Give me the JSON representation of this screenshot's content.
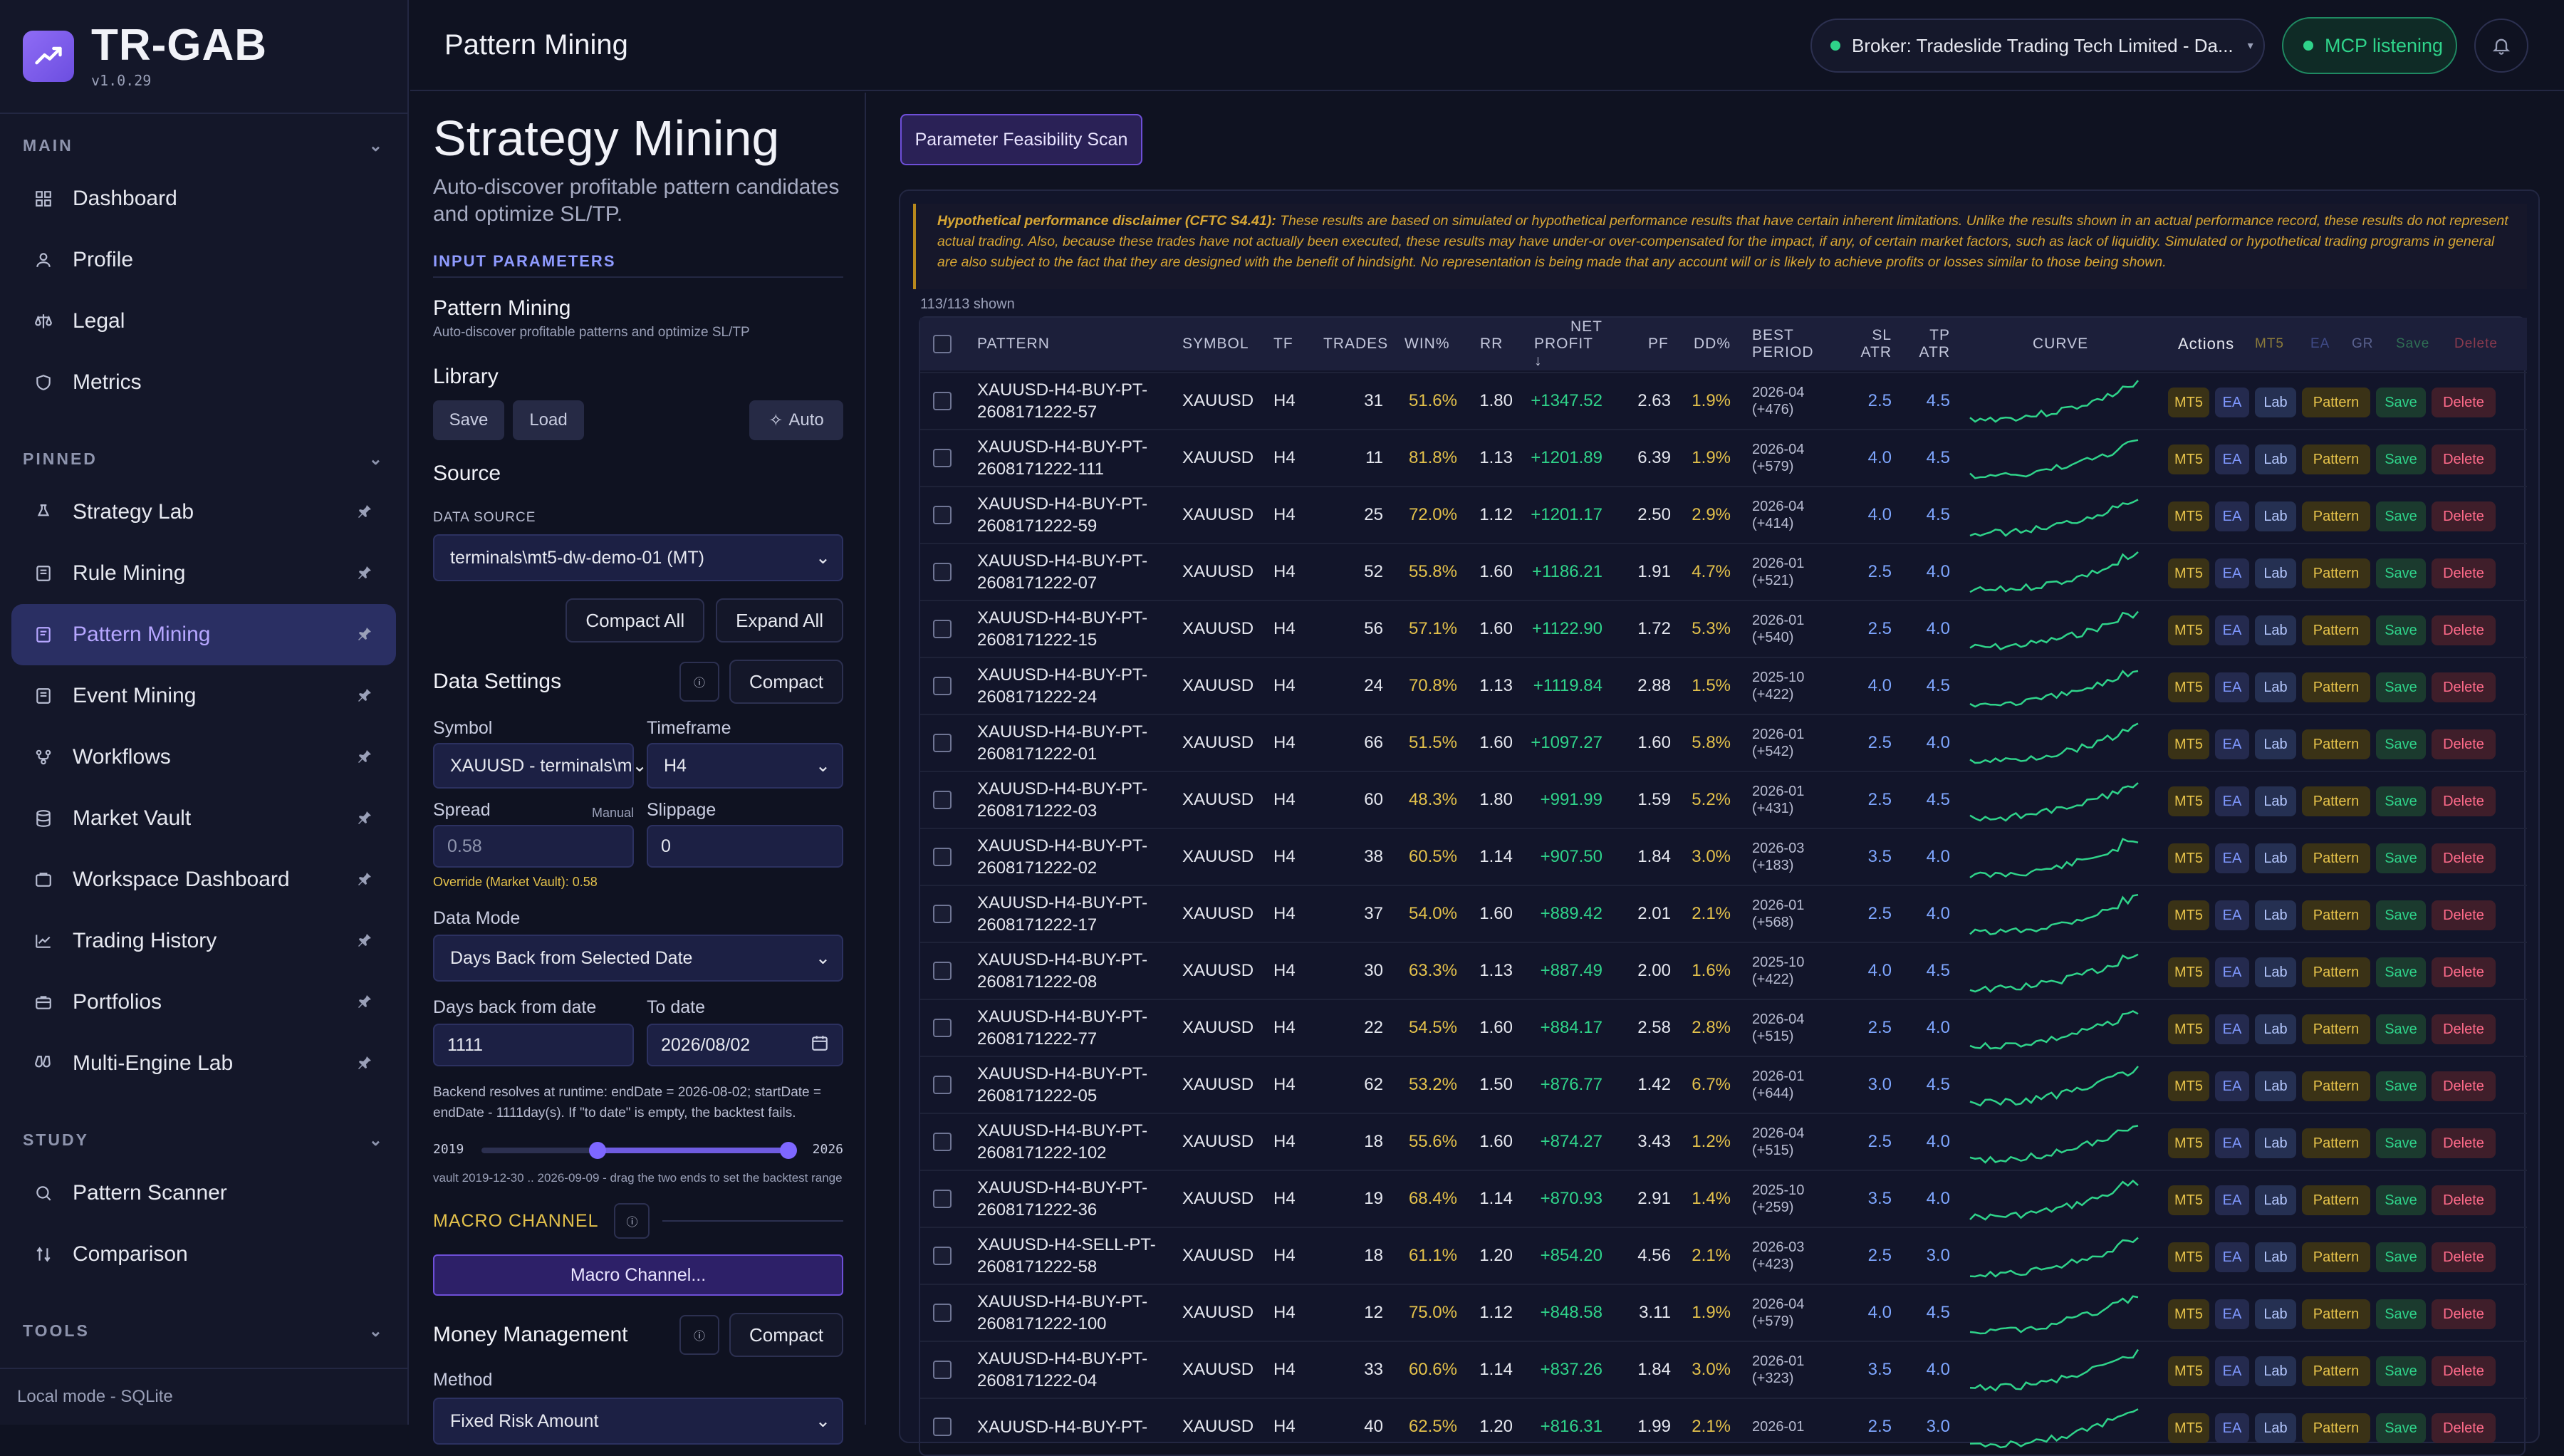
{
  "app": {
    "name": "TR-GAB",
    "version": "v1.0.29"
  },
  "sidebar": {
    "main_label": "MAIN",
    "main_items": [
      "Dashboard",
      "Profile",
      "Legal",
      "Metrics"
    ],
    "pinned_label": "PINNED",
    "pinned_items": [
      "Strategy Lab",
      "Rule Mining",
      "Pattern Mining",
      "Event Mining",
      "Workflows",
      "Market Vault",
      "Workspace Dashboard",
      "Trading History",
      "Portfolios",
      "Multi-Engine Lab"
    ],
    "study_label": "STUDY",
    "study_items": [
      "Pattern Scanner",
      "Comparison"
    ],
    "tools_label": "TOOLS",
    "footer": "Local mode - SQLite"
  },
  "header": {
    "title": "Pattern Mining",
    "broker": "Broker: Tradeslide Trading Tech Limited - Da...",
    "mcp": "MCP listening"
  },
  "form": {
    "title": "Strategy Mining",
    "subtitle": "Auto-discover profitable pattern candidates and optimize SL/TP.",
    "input_params": "INPUT PARAMETERS",
    "pm_title": "Pattern Mining",
    "pm_sub": "Auto-discover profitable patterns and optimize SL/TP",
    "library": "Library",
    "save": "Save",
    "load": "Load",
    "auto": "Auto",
    "source": "Source",
    "data_source_label": "DATA SOURCE",
    "data_source": "terminals\\mt5-dw-demo-01 (MT)",
    "compact_all": "Compact All",
    "expand_all": "Expand All",
    "data_settings": "Data Settings",
    "compact": "Compact",
    "symbol_label": "Symbol",
    "symbol": "XAUUSD - terminals\\m",
    "timeframe_label": "Timeframe",
    "timeframe": "H4",
    "spread_label": "Spread",
    "spread_manual": "Manual",
    "spread_ph": "0.58",
    "slippage_label": "Slippage",
    "slippage": "0",
    "override": "Override (Market Vault): 0.58",
    "data_mode_label": "Data Mode",
    "data_mode": "Days Back from Selected Date",
    "days_back_label": "Days back from date",
    "days_back": "1111",
    "to_date_label": "To date",
    "to_date": "2026/08/02",
    "backend_note": "Backend resolves at runtime: endDate = 2026-08-02; startDate = endDate - 1111day(s). If \"to date\" is empty, the backtest fails.",
    "range_start": "2019",
    "range_end": "2026",
    "range_start_frac": 0.37,
    "range_end_frac": 0.98,
    "vault_note": "vault 2019-12-30 .. 2026-09-09 - drag the two ends to set the backtest range",
    "macro_label": "MACRO CHANNEL",
    "macro_btn": "Macro Channel...",
    "money_mgmt": "Money Management",
    "method_label": "Method",
    "method": "Fixed Risk Amount"
  },
  "main": {
    "scan_btn": "Parameter Feasibility Scan",
    "disclaimer_head": "Hypothetical performance disclaimer (CFTC S4.41):",
    "disclaimer_body": " These results are based on simulated or hypothetical performance results that have certain inherent limitations. Unlike the results shown in an actual performance record, these results do not represent actual trading. Also, because these trades have not actually been executed, these results may have under-or over-compensated for the impact, if any, of certain market factors, such as lack of liquidity. Simulated or hypothetical trading programs in general are also subject to the fact that they are designed with the benefit of hindsight. No representation is being made that any account will or is likely to achieve profits or losses similar to those being shown.",
    "shown": "113/113 shown"
  },
  "table": {
    "headers": {
      "pattern": "PATTERN",
      "symbol": "SYMBOL",
      "tf": "TF",
      "trades": "TRADES",
      "win": "WIN%",
      "rr": "RR",
      "net1": "NET",
      "net2": "PROFIT ↓",
      "pf": "PF",
      "dd": "DD%",
      "best1": "BEST",
      "best2": "PERIOD",
      "sl1": "SL",
      "sl2": "ATR",
      "tp1": "TP",
      "tp2": "ATR",
      "curve": "CURVE",
      "actions": "Actions",
      "h_mt5": "MT5",
      "h_ea": "EA",
      "h_gr": "GR",
      "h_save": "Save",
      "h_del": "Delete"
    },
    "action_labels": {
      "mt5": "MT5",
      "ea": "EA",
      "lab": "Lab",
      "pattern": "Pattern",
      "save": "Save",
      "delete": "Delete"
    },
    "rows": [
      {
        "p1": "XAUUSD-H4-BUY-PT-",
        "p2": "2608171222-57",
        "sym": "XAUUSD",
        "tf": "H4",
        "trades": "31",
        "win": "51.6%",
        "rr": "1.80",
        "net": "+1347.52",
        "pf": "2.63",
        "dd": "1.9%",
        "bp1": "2026-04",
        "bp2": "(+476)",
        "sl": "2.5",
        "tp": "4.5"
      },
      {
        "p1": "XAUUSD-H4-BUY-PT-",
        "p2": "2608171222-111",
        "sym": "XAUUSD",
        "tf": "H4",
        "trades": "11",
        "win": "81.8%",
        "rr": "1.13",
        "net": "+1201.89",
        "pf": "6.39",
        "dd": "1.9%",
        "bp1": "2026-04",
        "bp2": "(+579)",
        "sl": "4.0",
        "tp": "4.5"
      },
      {
        "p1": "XAUUSD-H4-BUY-PT-",
        "p2": "2608171222-59",
        "sym": "XAUUSD",
        "tf": "H4",
        "trades": "25",
        "win": "72.0%",
        "rr": "1.12",
        "net": "+1201.17",
        "pf": "2.50",
        "dd": "2.9%",
        "bp1": "2026-04",
        "bp2": "(+414)",
        "sl": "4.0",
        "tp": "4.5"
      },
      {
        "p1": "XAUUSD-H4-BUY-PT-",
        "p2": "2608171222-07",
        "sym": "XAUUSD",
        "tf": "H4",
        "trades": "52",
        "win": "55.8%",
        "rr": "1.60",
        "net": "+1186.21",
        "pf": "1.91",
        "dd": "4.7%",
        "bp1": "2026-01",
        "bp2": "(+521)",
        "sl": "2.5",
        "tp": "4.0"
      },
      {
        "p1": "XAUUSD-H4-BUY-PT-",
        "p2": "2608171222-15",
        "sym": "XAUUSD",
        "tf": "H4",
        "trades": "56",
        "win": "57.1%",
        "rr": "1.60",
        "net": "+1122.90",
        "pf": "1.72",
        "dd": "5.3%",
        "bp1": "2026-01",
        "bp2": "(+540)",
        "sl": "2.5",
        "tp": "4.0"
      },
      {
        "p1": "XAUUSD-H4-BUY-PT-",
        "p2": "2608171222-24",
        "sym": "XAUUSD",
        "tf": "H4",
        "trades": "24",
        "win": "70.8%",
        "rr": "1.13",
        "net": "+1119.84",
        "pf": "2.88",
        "dd": "1.5%",
        "bp1": "2025-10",
        "bp2": "(+422)",
        "sl": "4.0",
        "tp": "4.5"
      },
      {
        "p1": "XAUUSD-H4-BUY-PT-",
        "p2": "2608171222-01",
        "sym": "XAUUSD",
        "tf": "H4",
        "trades": "66",
        "win": "51.5%",
        "rr": "1.60",
        "net": "+1097.27",
        "pf": "1.60",
        "dd": "5.8%",
        "bp1": "2026-01",
        "bp2": "(+542)",
        "sl": "2.5",
        "tp": "4.0"
      },
      {
        "p1": "XAUUSD-H4-BUY-PT-",
        "p2": "2608171222-03",
        "sym": "XAUUSD",
        "tf": "H4",
        "trades": "60",
        "win": "48.3%",
        "rr": "1.80",
        "net": "+991.99",
        "pf": "1.59",
        "dd": "5.2%",
        "bp1": "2026-01",
        "bp2": "(+431)",
        "sl": "2.5",
        "tp": "4.5"
      },
      {
        "p1": "XAUUSD-H4-BUY-PT-",
        "p2": "2608171222-02",
        "sym": "XAUUSD",
        "tf": "H4",
        "trades": "38",
        "win": "60.5%",
        "rr": "1.14",
        "net": "+907.50",
        "pf": "1.84",
        "dd": "3.0%",
        "bp1": "2026-03",
        "bp2": "(+183)",
        "sl": "3.5",
        "tp": "4.0"
      },
      {
        "p1": "XAUUSD-H4-BUY-PT-",
        "p2": "2608171222-17",
        "sym": "XAUUSD",
        "tf": "H4",
        "trades": "37",
        "win": "54.0%",
        "rr": "1.60",
        "net": "+889.42",
        "pf": "2.01",
        "dd": "2.1%",
        "bp1": "2026-01",
        "bp2": "(+568)",
        "sl": "2.5",
        "tp": "4.0"
      },
      {
        "p1": "XAUUSD-H4-BUY-PT-",
        "p2": "2608171222-08",
        "sym": "XAUUSD",
        "tf": "H4",
        "trades": "30",
        "win": "63.3%",
        "rr": "1.13",
        "net": "+887.49",
        "pf": "2.00",
        "dd": "1.6%",
        "bp1": "2025-10",
        "bp2": "(+422)",
        "sl": "4.0",
        "tp": "4.5"
      },
      {
        "p1": "XAUUSD-H4-BUY-PT-",
        "p2": "2608171222-77",
        "sym": "XAUUSD",
        "tf": "H4",
        "trades": "22",
        "win": "54.5%",
        "rr": "1.60",
        "net": "+884.17",
        "pf": "2.58",
        "dd": "2.8%",
        "bp1": "2026-04",
        "bp2": "(+515)",
        "sl": "2.5",
        "tp": "4.0"
      },
      {
        "p1": "XAUUSD-H4-BUY-PT-",
        "p2": "2608171222-05",
        "sym": "XAUUSD",
        "tf": "H4",
        "trades": "62",
        "win": "53.2%",
        "rr": "1.50",
        "net": "+876.77",
        "pf": "1.42",
        "dd": "6.7%",
        "bp1": "2026-01",
        "bp2": "(+644)",
        "sl": "3.0",
        "tp": "4.5"
      },
      {
        "p1": "XAUUSD-H4-BUY-PT-",
        "p2": "2608171222-102",
        "sym": "XAUUSD",
        "tf": "H4",
        "trades": "18",
        "win": "55.6%",
        "rr": "1.60",
        "net": "+874.27",
        "pf": "3.43",
        "dd": "1.2%",
        "bp1": "2026-04",
        "bp2": "(+515)",
        "sl": "2.5",
        "tp": "4.0"
      },
      {
        "p1": "XAUUSD-H4-BUY-PT-",
        "p2": "2608171222-36",
        "sym": "XAUUSD",
        "tf": "H4",
        "trades": "19",
        "win": "68.4%",
        "rr": "1.14",
        "net": "+870.93",
        "pf": "2.91",
        "dd": "1.4%",
        "bp1": "2025-10",
        "bp2": "(+259)",
        "sl": "3.5",
        "tp": "4.0"
      },
      {
        "p1": "XAUUSD-H4-SELL-PT-",
        "p2": "2608171222-58",
        "sym": "XAUUSD",
        "tf": "H4",
        "trades": "18",
        "win": "61.1%",
        "rr": "1.20",
        "net": "+854.20",
        "pf": "4.56",
        "dd": "2.1%",
        "bp1": "2026-03",
        "bp2": "(+423)",
        "sl": "2.5",
        "tp": "3.0"
      },
      {
        "p1": "XAUUSD-H4-BUY-PT-",
        "p2": "2608171222-100",
        "sym": "XAUUSD",
        "tf": "H4",
        "trades": "12",
        "win": "75.0%",
        "rr": "1.12",
        "net": "+848.58",
        "pf": "3.11",
        "dd": "1.9%",
        "bp1": "2026-04",
        "bp2": "(+579)",
        "sl": "4.0",
        "tp": "4.5"
      },
      {
        "p1": "XAUUSD-H4-BUY-PT-",
        "p2": "2608171222-04",
        "sym": "XAUUSD",
        "tf": "H4",
        "trades": "33",
        "win": "60.6%",
        "rr": "1.14",
        "net": "+837.26",
        "pf": "1.84",
        "dd": "3.0%",
        "bp1": "2026-01",
        "bp2": "(+323)",
        "sl": "3.5",
        "tp": "4.0"
      },
      {
        "p1": "XAUUSD-H4-BUY-PT-",
        "p2": "",
        "sym": "XAUUSD",
        "tf": "H4",
        "trades": "40",
        "win": "62.5%",
        "rr": "1.20",
        "net": "+816.31",
        "pf": "1.99",
        "dd": "2.1%",
        "bp1": "2026-01",
        "bp2": "",
        "sl": "2.5",
        "tp": "3.0"
      }
    ]
  },
  "colors": {
    "accent": "#8f6cf5",
    "positive": "#2fd38a",
    "warning": "#e3c14b",
    "atr": "#7ea6ff",
    "danger": "#ff6b8a"
  }
}
